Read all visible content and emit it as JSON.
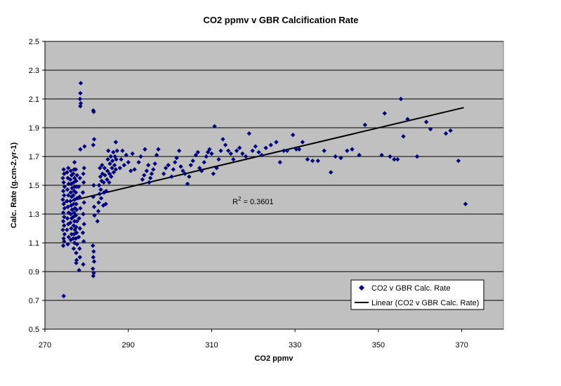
{
  "chart_data": {
    "type": "scatter",
    "title": "CO2 ppmv v GBR Calcification Rate",
    "xlabel": "CO2 ppmv",
    "ylabel": "Calc. Rate (g.cm-2.yr-1)",
    "xlim": [
      270,
      380
    ],
    "ylim": [
      0.5,
      2.5
    ],
    "xticks": [
      "270",
      "290",
      "310",
      "330",
      "350",
      "370"
    ],
    "yticks": [
      "0.5",
      "0.7",
      "0.9",
      "1.1",
      "1.3",
      "1.5",
      "1.7",
      "1.9",
      "2.1",
      "2.3",
      "2.5"
    ],
    "grid": "horizontal",
    "legend_position": "bottom-right",
    "annotation": {
      "text": "R",
      "sup": "2",
      "value": " = 0.3601"
    },
    "series": [
      {
        "name": "CO2 v GBR Calc. Rate",
        "color": "#00007f",
        "marker": "diamond",
        "points": [
          [
            274.5,
            0.73
          ],
          [
            274.4,
            1.08
          ],
          [
            274.6,
            1.11
          ],
          [
            274.5,
            1.13
          ],
          [
            274.7,
            1.16
          ],
          [
            274.3,
            1.19
          ],
          [
            274.6,
            1.22
          ],
          [
            274.4,
            1.25
          ],
          [
            274.6,
            1.28
          ],
          [
            274.4,
            1.31
          ],
          [
            274.7,
            1.34
          ],
          [
            274.5,
            1.37
          ],
          [
            274.3,
            1.4
          ],
          [
            274.6,
            1.43
          ],
          [
            274.4,
            1.46
          ],
          [
            274.7,
            1.49
          ],
          [
            274.5,
            1.52
          ],
          [
            274.3,
            1.55
          ],
          [
            274.6,
            1.58
          ],
          [
            274.5,
            1.61
          ],
          [
            275.5,
            1.09
          ],
          [
            275.7,
            1.14
          ],
          [
            275.3,
            1.19
          ],
          [
            275.6,
            1.23
          ],
          [
            275.4,
            1.27
          ],
          [
            275.7,
            1.31
          ],
          [
            275.5,
            1.35
          ],
          [
            275.3,
            1.39
          ],
          [
            275.6,
            1.43
          ],
          [
            275.4,
            1.47
          ],
          [
            275.7,
            1.51
          ],
          [
            275.5,
            1.55
          ],
          [
            275.3,
            1.59
          ],
          [
            275.6,
            1.62
          ],
          [
            276.2,
            1.12
          ],
          [
            276.4,
            1.16
          ],
          [
            276.3,
            1.2
          ],
          [
            276.1,
            1.24
          ],
          [
            276.4,
            1.27
          ],
          [
            276.2,
            1.3
          ],
          [
            276.5,
            1.33
          ],
          [
            276.3,
            1.36
          ],
          [
            276.1,
            1.39
          ],
          [
            276.4,
            1.42
          ],
          [
            276.2,
            1.45
          ],
          [
            276.5,
            1.48
          ],
          [
            276.3,
            1.51
          ],
          [
            276.1,
            1.54
          ],
          [
            276.4,
            1.57
          ],
          [
            276.2,
            1.6
          ],
          [
            276.9,
            1.06
          ],
          [
            277.1,
            1.1
          ],
          [
            276.8,
            1.13
          ],
          [
            277.0,
            1.16
          ],
          [
            277.2,
            1.19
          ],
          [
            276.9,
            1.22
          ],
          [
            277.1,
            1.25
          ],
          [
            276.8,
            1.28
          ],
          [
            277.0,
            1.31
          ],
          [
            277.2,
            1.34
          ],
          [
            276.9,
            1.37
          ],
          [
            277.1,
            1.4
          ],
          [
            276.8,
            1.43
          ],
          [
            277.0,
            1.46
          ],
          [
            277.2,
            1.49
          ],
          [
            276.9,
            1.52
          ],
          [
            277.1,
            1.55
          ],
          [
            276.8,
            1.58
          ],
          [
            277.0,
            1.61
          ],
          [
            277.1,
            1.66
          ],
          [
            277.5,
            0.96
          ],
          [
            277.6,
            0.98
          ],
          [
            277.5,
            1.03
          ],
          [
            277.7,
            1.09
          ],
          [
            277.4,
            1.13
          ],
          [
            277.6,
            1.17
          ],
          [
            277.5,
            1.21
          ],
          [
            277.7,
            1.25
          ],
          [
            277.4,
            1.29
          ],
          [
            277.6,
            1.33
          ],
          [
            277.5,
            1.37
          ],
          [
            277.7,
            1.41
          ],
          [
            277.4,
            1.45
          ],
          [
            277.6,
            1.49
          ],
          [
            277.5,
            1.53
          ],
          [
            277.7,
            1.57
          ],
          [
            277.4,
            1.61
          ],
          [
            278.2,
            0.91
          ],
          [
            278.4,
            1.0
          ],
          [
            278.3,
            1.06
          ],
          [
            278.1,
            1.14
          ],
          [
            278.4,
            1.2
          ],
          [
            278.2,
            1.27
          ],
          [
            278.5,
            1.34
          ],
          [
            278.3,
            1.42
          ],
          [
            278.1,
            1.49
          ],
          [
            278.4,
            1.55
          ],
          [
            278.5,
            1.75
          ],
          [
            278.6,
            2.21
          ],
          [
            278.5,
            2.14
          ],
          [
            278.4,
            2.1
          ],
          [
            278.6,
            2.07
          ],
          [
            278.5,
            2.05
          ],
          [
            279.2,
            0.95
          ],
          [
            279.3,
            1.11
          ],
          [
            279.1,
            1.17
          ],
          [
            279.4,
            1.23
          ],
          [
            279.2,
            1.3
          ],
          [
            279.4,
            1.38
          ],
          [
            279.1,
            1.45
          ],
          [
            279.3,
            1.52
          ],
          [
            279.2,
            1.58
          ],
          [
            279.4,
            1.62
          ],
          [
            279.5,
            1.77
          ],
          [
            281.6,
            0.87
          ],
          [
            281.7,
            0.89
          ],
          [
            281.5,
            0.92
          ],
          [
            281.8,
            0.97
          ],
          [
            281.6,
            1.0
          ],
          [
            281.7,
            1.04
          ],
          [
            281.5,
            1.08
          ],
          [
            281.9,
            1.29
          ],
          [
            281.8,
            1.35
          ],
          [
            281.6,
            1.42
          ],
          [
            281.7,
            1.5
          ],
          [
            281.6,
            1.78
          ],
          [
            281.8,
            1.82
          ],
          [
            281.7,
            2.01
          ],
          [
            281.6,
            2.02
          ],
          [
            282.6,
            1.25
          ],
          [
            282.8,
            1.32
          ],
          [
            282.9,
            1.38
          ],
          [
            283.1,
            1.44
          ],
          [
            283.0,
            1.5
          ],
          [
            283.3,
            1.56
          ],
          [
            283.2,
            1.62
          ],
          [
            283.5,
            1.41
          ],
          [
            283.4,
            1.47
          ],
          [
            283.6,
            1.53
          ],
          [
            283.8,
            1.58
          ],
          [
            283.7,
            1.64
          ],
          [
            284.0,
            1.36
          ],
          [
            284.2,
            1.45
          ],
          [
            284.1,
            1.52
          ],
          [
            284.4,
            1.57
          ],
          [
            284.3,
            1.62
          ],
          [
            284.6,
            1.37
          ],
          [
            284.7,
            1.46
          ],
          [
            284.9,
            1.54
          ],
          [
            285.0,
            1.6
          ],
          [
            285.1,
            1.68
          ],
          [
            285.2,
            1.74
          ],
          [
            285.4,
            1.52
          ],
          [
            285.5,
            1.58
          ],
          [
            285.6,
            1.65
          ],
          [
            285.8,
            1.7
          ],
          [
            285.9,
            1.56
          ],
          [
            286.1,
            1.62
          ],
          [
            286.2,
            1.67
          ],
          [
            286.4,
            1.73
          ],
          [
            286.5,
            1.59
          ],
          [
            286.7,
            1.64
          ],
          [
            286.8,
            1.7
          ],
          [
            287.0,
            1.61
          ],
          [
            287.1,
            1.68
          ],
          [
            287.0,
            1.8
          ],
          [
            287.3,
            1.74
          ],
          [
            288.0,
            1.62
          ],
          [
            288.3,
            1.68
          ],
          [
            288.6,
            1.74
          ],
          [
            289.0,
            1.64
          ],
          [
            289.5,
            1.71
          ],
          [
            290.0,
            1.66
          ],
          [
            290.6,
            1.6
          ],
          [
            291.0,
            1.72
          ],
          [
            291.5,
            1.61
          ],
          [
            292.5,
            1.66
          ],
          [
            293.0,
            1.7
          ],
          [
            293.4,
            1.54
          ],
          [
            293.8,
            1.57
          ],
          [
            294.0,
            1.75
          ],
          [
            294.4,
            1.6
          ],
          [
            294.8,
            1.64
          ],
          [
            295.0,
            1.52
          ],
          [
            295.3,
            1.55
          ],
          [
            295.6,
            1.58
          ],
          [
            296.0,
            1.61
          ],
          [
            296.4,
            1.65
          ],
          [
            296.8,
            1.71
          ],
          [
            297.2,
            1.75
          ],
          [
            298.5,
            1.58
          ],
          [
            299.0,
            1.62
          ],
          [
            299.6,
            1.64
          ],
          [
            300.4,
            1.56
          ],
          [
            300.8,
            1.61
          ],
          [
            301.2,
            1.66
          ],
          [
            301.6,
            1.69
          ],
          [
            302.2,
            1.74
          ],
          [
            302.6,
            1.63
          ],
          [
            303.1,
            1.6
          ],
          [
            303.6,
            1.58
          ],
          [
            304.2,
            1.51
          ],
          [
            304.6,
            1.56
          ],
          [
            305.0,
            1.64
          ],
          [
            305.5,
            1.67
          ],
          [
            306.2,
            1.71
          ],
          [
            306.7,
            1.73
          ],
          [
            307.1,
            1.62
          ],
          [
            307.6,
            1.6
          ],
          [
            308.2,
            1.66
          ],
          [
            308.7,
            1.7
          ],
          [
            309.1,
            1.73
          ],
          [
            309.5,
            1.75
          ],
          [
            310.0,
            1.72
          ],
          [
            310.4,
            1.58
          ],
          [
            310.7,
            1.91
          ],
          [
            311.2,
            1.62
          ],
          [
            311.7,
            1.68
          ],
          [
            312.2,
            1.74
          ],
          [
            312.7,
            1.82
          ],
          [
            313.3,
            1.78
          ],
          [
            314.0,
            1.74
          ],
          [
            314.6,
            1.72
          ],
          [
            315.2,
            1.68
          ],
          [
            316.0,
            1.74
          ],
          [
            316.7,
            1.76
          ],
          [
            317.4,
            1.72
          ],
          [
            318.2,
            1.7
          ],
          [
            319.0,
            1.86
          ],
          [
            319.8,
            1.74
          ],
          [
            320.5,
            1.77
          ],
          [
            321.3,
            1.73
          ],
          [
            322.0,
            1.71
          ],
          [
            323.0,
            1.76
          ],
          [
            324.2,
            1.78
          ],
          [
            325.5,
            1.8
          ],
          [
            326.4,
            1.66
          ],
          [
            327.3,
            1.74
          ],
          [
            328.1,
            1.74
          ],
          [
            329.5,
            1.85
          ],
          [
            330.3,
            1.75
          ],
          [
            331.0,
            1.75
          ],
          [
            331.8,
            1.8
          ],
          [
            333.0,
            1.68
          ],
          [
            334.2,
            1.67
          ],
          [
            335.5,
            1.67
          ],
          [
            337.0,
            1.74
          ],
          [
            338.6,
            1.59
          ],
          [
            339.7,
            1.7
          ],
          [
            341.0,
            1.69
          ],
          [
            342.5,
            1.74
          ],
          [
            343.7,
            1.75
          ],
          [
            345.4,
            1.71
          ],
          [
            346.8,
            1.92
          ],
          [
            350.8,
            1.71
          ],
          [
            351.5,
            2.0
          ],
          [
            352.8,
            1.7
          ],
          [
            353.8,
            1.68
          ],
          [
            354.6,
            1.68
          ],
          [
            355.4,
            2.1
          ],
          [
            356.0,
            1.84
          ],
          [
            357.0,
            1.96
          ],
          [
            359.3,
            1.7
          ],
          [
            361.5,
            1.94
          ],
          [
            362.5,
            1.89
          ],
          [
            366.2,
            1.86
          ],
          [
            367.3,
            1.88
          ],
          [
            369.2,
            1.67
          ],
          [
            370.9,
            1.37
          ]
        ]
      },
      {
        "name": "Linear (CO2 v GBR Calc. Rate)",
        "color": "#000000",
        "type": "trendline",
        "points": [
          [
            274.5,
            1.38
          ],
          [
            370.5,
            2.04
          ]
        ]
      }
    ]
  }
}
